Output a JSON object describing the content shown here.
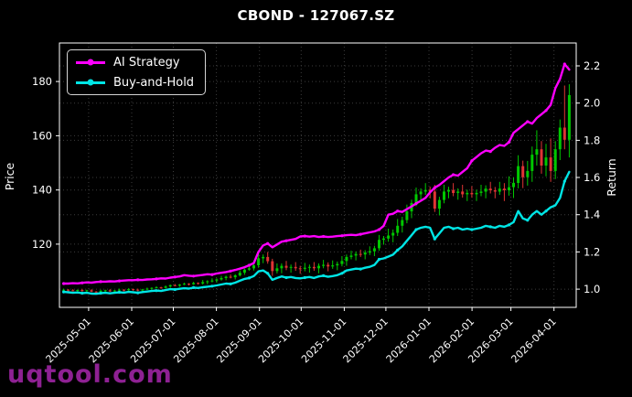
{
  "title": "CBOND - 127067.SZ",
  "watermark": "uqtool.com",
  "colors": {
    "background": "#000000",
    "spine": "#ffffff",
    "grid": "#3c3c3c",
    "text": "#ffffff",
    "ai_strategy": "#ff00ff",
    "buy_and_hold": "#00e5e5",
    "candle_up": "#00c800",
    "candle_down": "#e03434",
    "watermark": "#8e2193"
  },
  "chart_data": {
    "type": "line",
    "subtype": "line+candlestick",
    "grid": true,
    "legend_position": "upper left",
    "x_axis": {
      "tick_labels": [
        "2025-05-01",
        "2025-06-01",
        "2025-07-01",
        "2025-08-01",
        "2025-09-01",
        "2025-10-01",
        "2025-11-01",
        "2025-12-01",
        "2026-01-01",
        "2026-02-01",
        "2026-03-01",
        "2026-04-01"
      ],
      "tick_days": [
        21,
        52,
        82,
        113,
        144,
        174,
        205,
        235,
        266,
        297,
        325,
        356
      ],
      "domain_days": [
        0,
        372
      ],
      "series_day_span": [
        3,
        367
      ]
    },
    "y_left": {
      "label": "Price",
      "tick_labels": [
        "120",
        "140",
        "160",
        "180"
      ],
      "range": [
        96.7,
        194.2
      ]
    },
    "y_right": {
      "label": "Return",
      "tick_labels": [
        "1.0",
        "1.2",
        "1.4",
        "1.6",
        "1.8",
        "2.0",
        "2.2"
      ],
      "range": [
        0.902,
        2.323
      ]
    },
    "series": [
      {
        "name": "AI Strategy",
        "type": "line",
        "axis": "right",
        "color": "#ff00ff",
        "values": [
          1.03,
          1.03,
          1.032,
          1.031,
          1.034,
          1.036,
          1.035,
          1.038,
          1.04,
          1.04,
          1.042,
          1.041,
          1.044,
          1.046,
          1.048,
          1.048,
          1.05,
          1.049,
          1.052,
          1.053,
          1.055,
          1.058,
          1.057,
          1.062,
          1.065,
          1.068,
          1.075,
          1.072,
          1.07,
          1.073,
          1.076,
          1.08,
          1.078,
          1.084,
          1.088,
          1.092,
          1.097,
          1.103,
          1.11,
          1.118,
          1.128,
          1.14,
          1.2,
          1.235,
          1.245,
          1.225,
          1.24,
          1.255,
          1.26,
          1.265,
          1.27,
          1.283,
          1.285,
          1.282,
          1.285,
          1.28,
          1.283,
          1.28,
          1.282,
          1.285,
          1.287,
          1.29,
          1.292,
          1.29,
          1.295,
          1.3,
          1.305,
          1.31,
          1.32,
          1.34,
          1.4,
          1.405,
          1.42,
          1.415,
          1.43,
          1.445,
          1.46,
          1.475,
          1.49,
          1.52,
          1.545,
          1.56,
          1.58,
          1.6,
          1.615,
          1.61,
          1.63,
          1.65,
          1.69,
          1.71,
          1.73,
          1.745,
          1.74,
          1.76,
          1.775,
          1.77,
          1.79,
          1.84,
          1.86,
          1.88,
          1.9,
          1.89,
          1.92,
          1.94,
          1.96,
          1.99,
          2.08,
          2.13,
          2.21,
          2.18
        ]
      },
      {
        "name": "Buy-and-Hold",
        "type": "line",
        "axis": "right",
        "color": "#00e5e5",
        "values": [
          0.985,
          0.983,
          0.98,
          0.982,
          0.978,
          0.98,
          0.976,
          0.975,
          0.978,
          0.98,
          0.977,
          0.98,
          0.983,
          0.981,
          0.985,
          0.983,
          0.98,
          0.984,
          0.987,
          0.99,
          0.992,
          0.99,
          0.995,
          1.0,
          0.998,
          1.002,
          1.005,
          1.003,
          1.008,
          1.006,
          1.01,
          1.013,
          1.016,
          1.02,
          1.025,
          1.03,
          1.028,
          1.035,
          1.045,
          1.055,
          1.06,
          1.07,
          1.095,
          1.1,
          1.085,
          1.05,
          1.06,
          1.068,
          1.062,
          1.065,
          1.06,
          1.058,
          1.062,
          1.065,
          1.06,
          1.068,
          1.072,
          1.066,
          1.07,
          1.075,
          1.085,
          1.1,
          1.105,
          1.11,
          1.108,
          1.115,
          1.12,
          1.13,
          1.16,
          1.165,
          1.175,
          1.185,
          1.21,
          1.23,
          1.26,
          1.29,
          1.32,
          1.33,
          1.335,
          1.33,
          1.27,
          1.3,
          1.33,
          1.335,
          1.325,
          1.33,
          1.32,
          1.325,
          1.32,
          1.325,
          1.33,
          1.34,
          1.335,
          1.33,
          1.34,
          1.335,
          1.345,
          1.36,
          1.42,
          1.38,
          1.37,
          1.4,
          1.42,
          1.4,
          1.42,
          1.44,
          1.45,
          1.49,
          1.58,
          1.63
        ]
      },
      {
        "name": "Price",
        "type": "candlestick",
        "axis": "left",
        "up_color": "#00c800",
        "down_color": "#e03434",
        "ohlc": [
          [
            103.0,
            103.6,
            102.8,
            103.2
          ],
          [
            103.2,
            103.4,
            102.6,
            103.0
          ],
          [
            103.0,
            103.4,
            102.6,
            102.8
          ],
          [
            102.8,
            103.3,
            102.4,
            103.1
          ],
          [
            103.1,
            103.5,
            102.5,
            102.7
          ],
          [
            102.7,
            103.2,
            102.3,
            103.0
          ],
          [
            103.0,
            103.4,
            102.3,
            102.5
          ],
          [
            102.5,
            102.7,
            102.0,
            102.4
          ],
          [
            102.4,
            103.2,
            102.2,
            102.8
          ],
          [
            102.8,
            103.2,
            102.4,
            103.0
          ],
          [
            103.0,
            103.4,
            102.4,
            102.6
          ],
          [
            102.6,
            103.1,
            102.2,
            102.9
          ],
          [
            102.9,
            103.6,
            102.7,
            103.2
          ],
          [
            103.2,
            103.4,
            102.6,
            103.0
          ],
          [
            103.0,
            103.8,
            102.8,
            103.4
          ],
          [
            103.4,
            103.6,
            102.8,
            103.2
          ],
          [
            103.2,
            103.6,
            102.7,
            102.9
          ],
          [
            102.9,
            103.5,
            102.5,
            103.3
          ],
          [
            103.3,
            104.0,
            103.1,
            103.6
          ],
          [
            103.6,
            104.1,
            103.2,
            103.9
          ],
          [
            103.9,
            104.5,
            103.7,
            104.1
          ],
          [
            104.1,
            104.3,
            103.5,
            103.9
          ],
          [
            103.9,
            104.8,
            103.7,
            104.4
          ],
          [
            104.4,
            105.1,
            104.0,
            104.9
          ],
          [
            104.9,
            105.3,
            104.5,
            104.7
          ],
          [
            104.7,
            105.3,
            104.3,
            105.1
          ],
          [
            105.1,
            105.8,
            104.9,
            105.4
          ],
          [
            105.4,
            105.6,
            104.8,
            105.2
          ],
          [
            105.2,
            106.1,
            105.0,
            105.7
          ],
          [
            105.7,
            105.9,
            105.1,
            105.5
          ],
          [
            105.5,
            106.8,
            105.1,
            106.0
          ],
          [
            106.0,
            106.7,
            105.2,
            106.3
          ],
          [
            106.3,
            107.4,
            105.9,
            106.6
          ],
          [
            106.6,
            107.4,
            105.8,
            107.0
          ],
          [
            107.0,
            108.3,
            106.6,
            107.5
          ],
          [
            107.5,
            108.4,
            106.7,
            108.0
          ],
          [
            108.0,
            108.8,
            107.4,
            107.8
          ],
          [
            107.8,
            108.9,
            107.0,
            108.5
          ],
          [
            108.5,
            110.3,
            108.1,
            109.5
          ],
          [
            109.5,
            111.0,
            108.7,
            110.6
          ],
          [
            110.6,
            111.9,
            110.2,
            111.1
          ],
          [
            111.1,
            112.6,
            110.3,
            112.2
          ],
          [
            112.2,
            116.6,
            111.3,
            114.8
          ],
          [
            114.8,
            116.2,
            113.0,
            115.3
          ],
          [
            115.3,
            117.1,
            112.8,
            113.7
          ],
          [
            113.7,
            114.6,
            108.3,
            110.1
          ],
          [
            110.1,
            112.9,
            109.2,
            111.1
          ],
          [
            111.1,
            112.9,
            109.3,
            112.0
          ],
          [
            112.0,
            113.8,
            110.4,
            111.3
          ],
          [
            111.3,
            112.5,
            109.5,
            111.6
          ],
          [
            111.6,
            113.4,
            110.2,
            111.1
          ],
          [
            111.1,
            112.0,
            109.1,
            110.9
          ],
          [
            110.9,
            113.1,
            110.0,
            111.3
          ],
          [
            111.3,
            112.5,
            109.5,
            111.6
          ],
          [
            111.6,
            113.4,
            110.2,
            111.1
          ],
          [
            111.1,
            112.9,
            109.3,
            112.0
          ],
          [
            112.0,
            114.2,
            111.1,
            112.4
          ],
          [
            112.4,
            113.3,
            110.0,
            111.8
          ],
          [
            111.8,
            114.0,
            110.9,
            112.2
          ],
          [
            112.2,
            113.6,
            110.4,
            112.7
          ],
          [
            112.7,
            115.6,
            111.8,
            113.8
          ],
          [
            113.8,
            116.2,
            112.0,
            115.3
          ],
          [
            115.3,
            117.6,
            114.4,
            115.8
          ],
          [
            115.8,
            117.3,
            114.0,
            116.4
          ],
          [
            116.4,
            118.0,
            115.3,
            116.2
          ],
          [
            116.2,
            117.8,
            114.4,
            116.9
          ],
          [
            116.9,
            119.2,
            116.0,
            117.4
          ],
          [
            117.4,
            119.4,
            115.6,
            118.5
          ],
          [
            118.5,
            123.4,
            117.6,
            121.6
          ],
          [
            121.6,
            123.0,
            119.8,
            122.1
          ],
          [
            122.1,
            125.7,
            120.9,
            123.2
          ],
          [
            123.2,
            125.4,
            120.7,
            124.2
          ],
          [
            124.2,
            129.3,
            123.0,
            126.8
          ],
          [
            126.8,
            130.1,
            124.3,
            128.9
          ],
          [
            128.9,
            134.6,
            127.7,
            132.1
          ],
          [
            132.1,
            136.4,
            129.6,
            135.2
          ],
          [
            135.2,
            140.9,
            134.0,
            138.4
          ],
          [
            138.4,
            140.6,
            135.9,
            139.4
          ],
          [
            139.4,
            142.5,
            138.2,
            140.0
          ],
          [
            140.0,
            141.2,
            136.9,
            139.4
          ],
          [
            139.4,
            141.9,
            131.9,
            133.1
          ],
          [
            133.1,
            137.5,
            130.6,
            136.3
          ],
          [
            136.3,
            141.9,
            135.1,
            139.4
          ],
          [
            139.4,
            141.2,
            136.9,
            140.0
          ],
          [
            140.0,
            142.5,
            137.7,
            138.9
          ],
          [
            138.9,
            140.6,
            136.4,
            139.4
          ],
          [
            139.4,
            141.9,
            137.2,
            138.4
          ],
          [
            138.4,
            140.1,
            135.9,
            138.9
          ],
          [
            138.9,
            141.4,
            137.2,
            138.4
          ],
          [
            138.4,
            140.1,
            135.9,
            138.9
          ],
          [
            138.9,
            141.9,
            137.7,
            139.4
          ],
          [
            139.4,
            141.7,
            136.9,
            140.5
          ],
          [
            140.5,
            143.0,
            138.7,
            139.9
          ],
          [
            139.9,
            141.1,
            136.9,
            139.4
          ],
          [
            139.4,
            143.0,
            138.2,
            140.5
          ],
          [
            140.5,
            142.5,
            135.9,
            139.9
          ],
          [
            139.9,
            145.0,
            137.9,
            141.0
          ],
          [
            141.0,
            144.6,
            137.0,
            142.6
          ],
          [
            142.6,
            152.8,
            140.6,
            148.8
          ],
          [
            148.8,
            150.8,
            140.7,
            144.7
          ],
          [
            144.7,
            150.7,
            141.6,
            147.0
          ],
          [
            147.0,
            156.0,
            143.0,
            153.0
          ],
          [
            153.0,
            162.0,
            149.0,
            155.0
          ],
          [
            155.0,
            158.0,
            146.0,
            149.0
          ],
          [
            149.0,
            157.0,
            145.0,
            152.0
          ],
          [
            152.0,
            159.0,
            143.0,
            147.0
          ],
          [
            147.0,
            158.0,
            144.0,
            155.0
          ],
          [
            155.0,
            166.0,
            151.0,
            163.0
          ],
          [
            163.0,
            178.5,
            155.0,
            158.5
          ],
          [
            158.5,
            179.0,
            152.0,
            175.0
          ]
        ]
      }
    ]
  }
}
